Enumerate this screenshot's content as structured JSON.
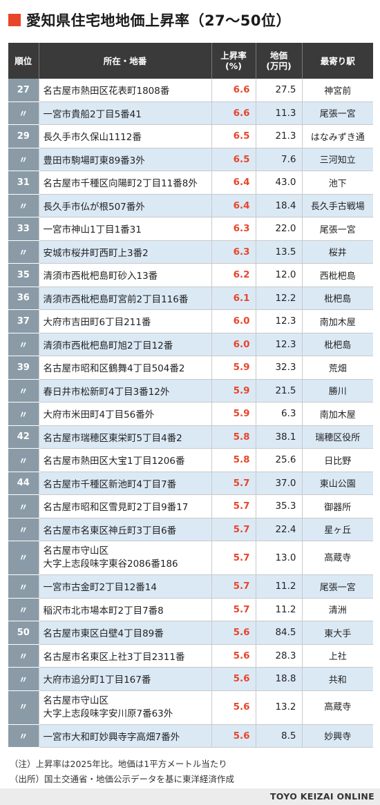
{
  "title": "愛知県住宅地地価上昇率（27〜50位）",
  "headers": {
    "rank": "順位",
    "location": "所在・地番",
    "rate": "上昇率\n(%)",
    "price": "地価\n(万円)",
    "station": "最寄り駅"
  },
  "rows": [
    {
      "rank": "27",
      "location": "名古屋市熱田区花表町1808番",
      "rate": "6.6",
      "price": "27.5",
      "station": "神宮前"
    },
    {
      "rank": "〃",
      "location": "一宮市貴船2丁目5番41",
      "rate": "6.6",
      "price": "11.3",
      "station": "尾張一宮"
    },
    {
      "rank": "29",
      "location": "長久手市久保山1112番",
      "rate": "6.5",
      "price": "21.3",
      "station": "はなみずき通"
    },
    {
      "rank": "〃",
      "location": "豊田市駒場町東89番3外",
      "rate": "6.5",
      "price": "7.6",
      "station": "三河知立"
    },
    {
      "rank": "31",
      "location": "名古屋市千種区向陽町2丁目11番8外",
      "rate": "6.4",
      "price": "43.0",
      "station": "池下"
    },
    {
      "rank": "〃",
      "location": "長久手市仏が根507番外",
      "rate": "6.4",
      "price": "18.4",
      "station": "長久手古戦場"
    },
    {
      "rank": "33",
      "location": "一宮市神山1丁目1番31",
      "rate": "6.3",
      "price": "22.0",
      "station": "尾張一宮"
    },
    {
      "rank": "〃",
      "location": "安城市桜井町西町上3番2",
      "rate": "6.3",
      "price": "13.5",
      "station": "桜井"
    },
    {
      "rank": "35",
      "location": "清須市西枇杷島町砂入13番",
      "rate": "6.2",
      "price": "12.0",
      "station": "西枇杷島"
    },
    {
      "rank": "36",
      "location": "清須市西枇杷島町宮前2丁目116番",
      "rate": "6.1",
      "price": "12.2",
      "station": "枇杷島"
    },
    {
      "rank": "37",
      "location": "大府市吉田町6丁目211番",
      "rate": "6.0",
      "price": "12.3",
      "station": "南加木屋"
    },
    {
      "rank": "〃",
      "location": "清須市西枇杷島町旭2丁目12番",
      "rate": "6.0",
      "price": "12.3",
      "station": "枇杷島"
    },
    {
      "rank": "39",
      "location": "名古屋市昭和区鶴舞4丁目504番2",
      "rate": "5.9",
      "price": "32.3",
      "station": "荒畑"
    },
    {
      "rank": "〃",
      "location": "春日井市松新町4丁目3番12外",
      "rate": "5.9",
      "price": "21.5",
      "station": "勝川"
    },
    {
      "rank": "〃",
      "location": "大府市米田町4丁目56番外",
      "rate": "5.9",
      "price": "6.3",
      "station": "南加木屋"
    },
    {
      "rank": "42",
      "location": "名古屋市瑞穂区東栄町5丁目4番2",
      "rate": "5.8",
      "price": "38.1",
      "station": "瑞穂区役所"
    },
    {
      "rank": "〃",
      "location": "名古屋市熱田区大宝1丁目1206番",
      "rate": "5.8",
      "price": "25.6",
      "station": "日比野"
    },
    {
      "rank": "44",
      "location": "名古屋市千種区新池町4丁目7番",
      "rate": "5.7",
      "price": "37.0",
      "station": "東山公園"
    },
    {
      "rank": "〃",
      "location": "名古屋市昭和区雪見町2丁目9番17",
      "rate": "5.7",
      "price": "35.3",
      "station": "御器所"
    },
    {
      "rank": "〃",
      "location": "名古屋市名東区神丘町3丁目6番",
      "rate": "5.7",
      "price": "22.4",
      "station": "星ヶ丘"
    },
    {
      "rank": "〃",
      "location_line1": "名古屋市守山区",
      "location_line2": "大字上志段味字東谷2086番186",
      "rate": "5.7",
      "price": "13.0",
      "station": "高蔵寺",
      "tall": true
    },
    {
      "rank": "〃",
      "location": "一宮市古金町2丁目12番14",
      "rate": "5.7",
      "price": "11.2",
      "station": "尾張一宮"
    },
    {
      "rank": "〃",
      "location": "稲沢市北市場本町2丁目7番8",
      "rate": "5.7",
      "price": "11.2",
      "station": "清洲"
    },
    {
      "rank": "50",
      "location": "名古屋市東区白壁4丁目89番",
      "rate": "5.6",
      "price": "84.5",
      "station": "東大手"
    },
    {
      "rank": "〃",
      "location": "名古屋市名東区上社3丁目2311番",
      "rate": "5.6",
      "price": "28.3",
      "station": "上社"
    },
    {
      "rank": "〃",
      "location": "大府市追分町1丁目167番",
      "rate": "5.6",
      "price": "18.8",
      "station": "共和"
    },
    {
      "rank": "〃",
      "location_line1": "名古屋市守山区",
      "location_line2": "大字上志段味字安川原7番63外",
      "rate": "5.6",
      "price": "13.2",
      "station": "高蔵寺",
      "tall": true
    },
    {
      "rank": "〃",
      "location": "一宮市大和町妙興寺字高畑7番外",
      "rate": "5.6",
      "price": "8.5",
      "station": "妙興寺"
    }
  ],
  "notes": {
    "note1": "（注）上昇率は2025年比。地価は1平方メートル当たり",
    "note2": "（出所）国土交通省・地価公示データを基に東洋経済作成"
  },
  "brand": "TOYO KEIZAI ONLINE",
  "colors": {
    "accent": "#e8452b",
    "header_bg": "#3a3a3a",
    "rank_bg": "#8a9ba7",
    "row_alt": "#dbe9f5"
  }
}
